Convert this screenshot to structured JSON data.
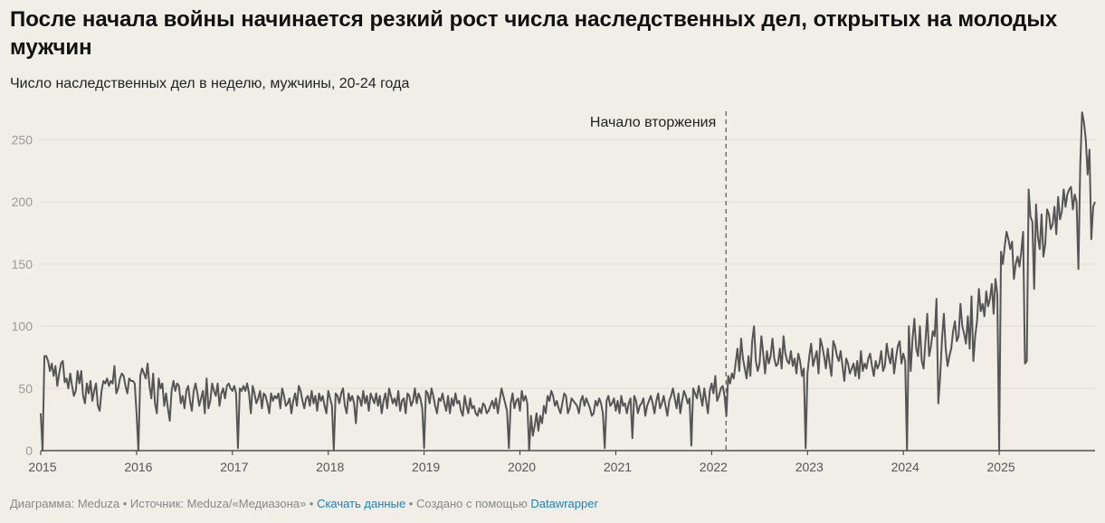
{
  "title": "После начала войны начинается резкий рост числа наследственных дел, открытых на молодых мужчин",
  "subtitle": "Число наследственных дел в неделю, мужчины, 20-24 года",
  "footer": {
    "chart_by": "Диаграмма: Meduza",
    "source": "Источник: Meduza/«Медиазона»",
    "download": "Скачать данные",
    "created_with": "Создано с помощью",
    "tool": "Datawrapper",
    "bullet": "•"
  },
  "colors": {
    "background": "#f1eee8",
    "line": "#555555",
    "grid": "#e0ddd7",
    "axis": "#333333",
    "link": "#1c80c0"
  },
  "chart_data": {
    "type": "line",
    "title": "После начала войны начинается резкий рост числа наследственных дел, открытых на молодых мужчин",
    "subtitle": "Число наследственных дел в неделю, мужчины, 20-24 года",
    "xlabel": "",
    "ylabel": "",
    "xlim": [
      2015.0,
      2026.0
    ],
    "ylim": [
      0,
      275
    ],
    "yticks": [
      0,
      50,
      100,
      150,
      200,
      250
    ],
    "xticks": [
      "2015",
      "2016",
      "2017",
      "2018",
      "2019",
      "2020",
      "2021",
      "2022",
      "2023",
      "2024",
      "2025"
    ],
    "grid": "horizontal",
    "annotation": {
      "label": "Начало вторжения",
      "x": 2022.15
    },
    "series": [
      {
        "x_start": 2015.0,
        "x_step": 0.01923,
        "values": [
          30,
          0,
          76,
          76,
          72,
          64,
          70,
          60,
          68,
          52,
          62,
          70,
          72,
          55,
          58,
          50,
          62,
          52,
          44,
          48,
          64,
          54,
          64,
          44,
          38,
          54,
          46,
          56,
          40,
          48,
          54,
          36,
          32,
          48,
          56,
          54,
          58,
          52,
          56,
          54,
          68,
          46,
          50,
          58,
          62,
          60,
          52,
          46,
          58,
          56,
          56,
          54,
          30,
          0,
          60,
          66,
          62,
          58,
          70,
          52,
          42,
          62,
          38,
          30,
          58,
          50,
          54,
          36,
          46,
          34,
          24,
          48,
          56,
          48,
          54,
          52,
          38,
          44,
          34,
          48,
          52,
          40,
          32,
          48,
          54,
          46,
          36,
          42,
          48,
          30,
          58,
          34,
          40,
          54,
          48,
          44,
          54,
          36,
          46,
          50,
          42,
          52,
          54,
          50,
          48,
          52,
          46,
          2,
          50,
          48,
          52,
          48,
          54,
          46,
          30,
          52,
          46,
          38,
          42,
          48,
          34,
          46,
          44,
          38,
          30,
          46,
          40,
          44,
          42,
          46,
          34,
          50,
          44,
          36,
          38,
          42,
          30,
          40,
          46,
          36,
          52,
          48,
          40,
          34,
          42,
          44,
          36,
          48,
          38,
          44,
          32,
          46,
          40,
          44,
          36,
          30,
          48,
          42,
          36,
          0,
          46,
          44,
          38,
          46,
          50,
          36,
          30,
          46,
          40,
          44,
          38,
          22,
          44,
          42,
          36,
          48,
          38,
          44,
          32,
          46,
          42,
          38,
          46,
          36,
          44,
          30,
          40,
          46,
          34,
          50,
          44,
          38,
          42,
          36,
          48,
          32,
          40,
          42,
          30,
          46,
          44,
          36,
          40,
          50,
          38,
          46,
          42,
          34,
          2,
          48,
          46,
          38,
          50,
          44,
          36,
          30,
          42,
          40,
          46,
          38,
          32,
          44,
          30,
          42,
          36,
          46,
          38,
          40,
          32,
          28,
          44,
          36,
          30,
          42,
          34,
          36,
          30,
          28,
          34,
          30,
          38,
          36,
          30,
          32,
          36,
          40,
          34,
          42,
          30,
          40,
          50,
          44,
          38,
          32,
          2,
          38,
          46,
          34,
          40,
          42,
          32,
          48,
          40,
          44,
          38,
          0,
          28,
          12,
          20,
          30,
          16,
          28,
          22,
          36,
          30,
          44,
          40,
          48,
          44,
          36,
          40,
          34,
          30,
          38,
          46,
          44,
          30,
          34,
          42,
          40,
          38,
          36,
          30,
          40,
          44,
          36,
          42,
          38,
          34,
          28,
          30,
          40,
          36,
          42,
          38,
          30,
          2,
          40,
          44,
          36,
          38,
          42,
          32,
          40,
          30,
          44,
          36,
          38,
          30,
          38,
          42,
          10,
          44,
          40,
          30,
          36,
          38,
          42,
          28,
          36,
          40,
          44,
          38,
          30,
          40,
          46,
          34,
          38,
          44,
          36,
          28,
          40,
          44,
          50,
          42,
          34,
          46,
          30,
          40,
          48,
          44,
          38,
          42,
          4,
          50,
          46,
          42,
          52,
          44,
          36,
          50,
          40,
          30,
          48,
          54,
          46,
          60,
          40,
          44,
          50,
          52,
          44,
          28,
          60,
          54,
          62,
          58,
          70,
          82,
          64,
          90,
          74,
          66,
          58,
          76,
          60,
          88,
          100,
          72,
          64,
          70,
          92,
          78,
          62,
          80,
          70,
          76,
          90,
          74,
          68,
          70,
          82,
          66,
          92,
          78,
          72,
          70,
          80,
          68,
          74,
          62,
          78,
          72,
          60,
          66,
          2,
          62,
          76,
          86,
          68,
          74,
          80,
          62,
          90,
          84,
          76,
          66,
          82,
          70,
          60,
          88,
          84,
          76,
          72,
          80,
          68,
          56,
          74,
          70,
          62,
          66,
          70,
          60,
          72,
          58,
          80,
          64,
          70,
          66,
          74,
          78,
          68,
          60,
          72,
          66,
          70,
          80,
          64,
          68,
          86,
          76,
          70,
          82,
          62,
          74,
          84,
          88,
          70,
          78,
          72,
          0,
          100,
          64,
          90,
          106,
          82,
          76,
          100,
          72,
          66,
          88,
          110,
          76,
          84,
          96,
          92,
          122,
          38,
          60,
          90,
          110,
          82,
          68,
          76,
          82,
          96,
          104,
          88,
          92,
          118,
          100,
          94,
          86,
          108,
          82,
          124,
          72,
          92,
          104,
          130,
          112,
          118,
          108,
          128,
          116,
          122,
          134,
          110,
          138,
          126,
          0,
          160,
          150,
          164,
          176,
          170,
          162,
          168,
          138,
          150,
          156,
          148,
          160,
          176,
          70,
          72,
          210,
          188,
          184,
          130,
          198,
          172,
          162,
          190,
          156,
          166,
          194,
          190,
          178,
          182,
          196,
          174,
          204,
          186,
          192,
          210,
          196,
          206,
          210,
          212,
          194,
          206,
          200,
          146,
          230,
          272,
          264,
          250,
          222,
          242,
          170,
          196,
          200
        ]
      }
    ]
  }
}
